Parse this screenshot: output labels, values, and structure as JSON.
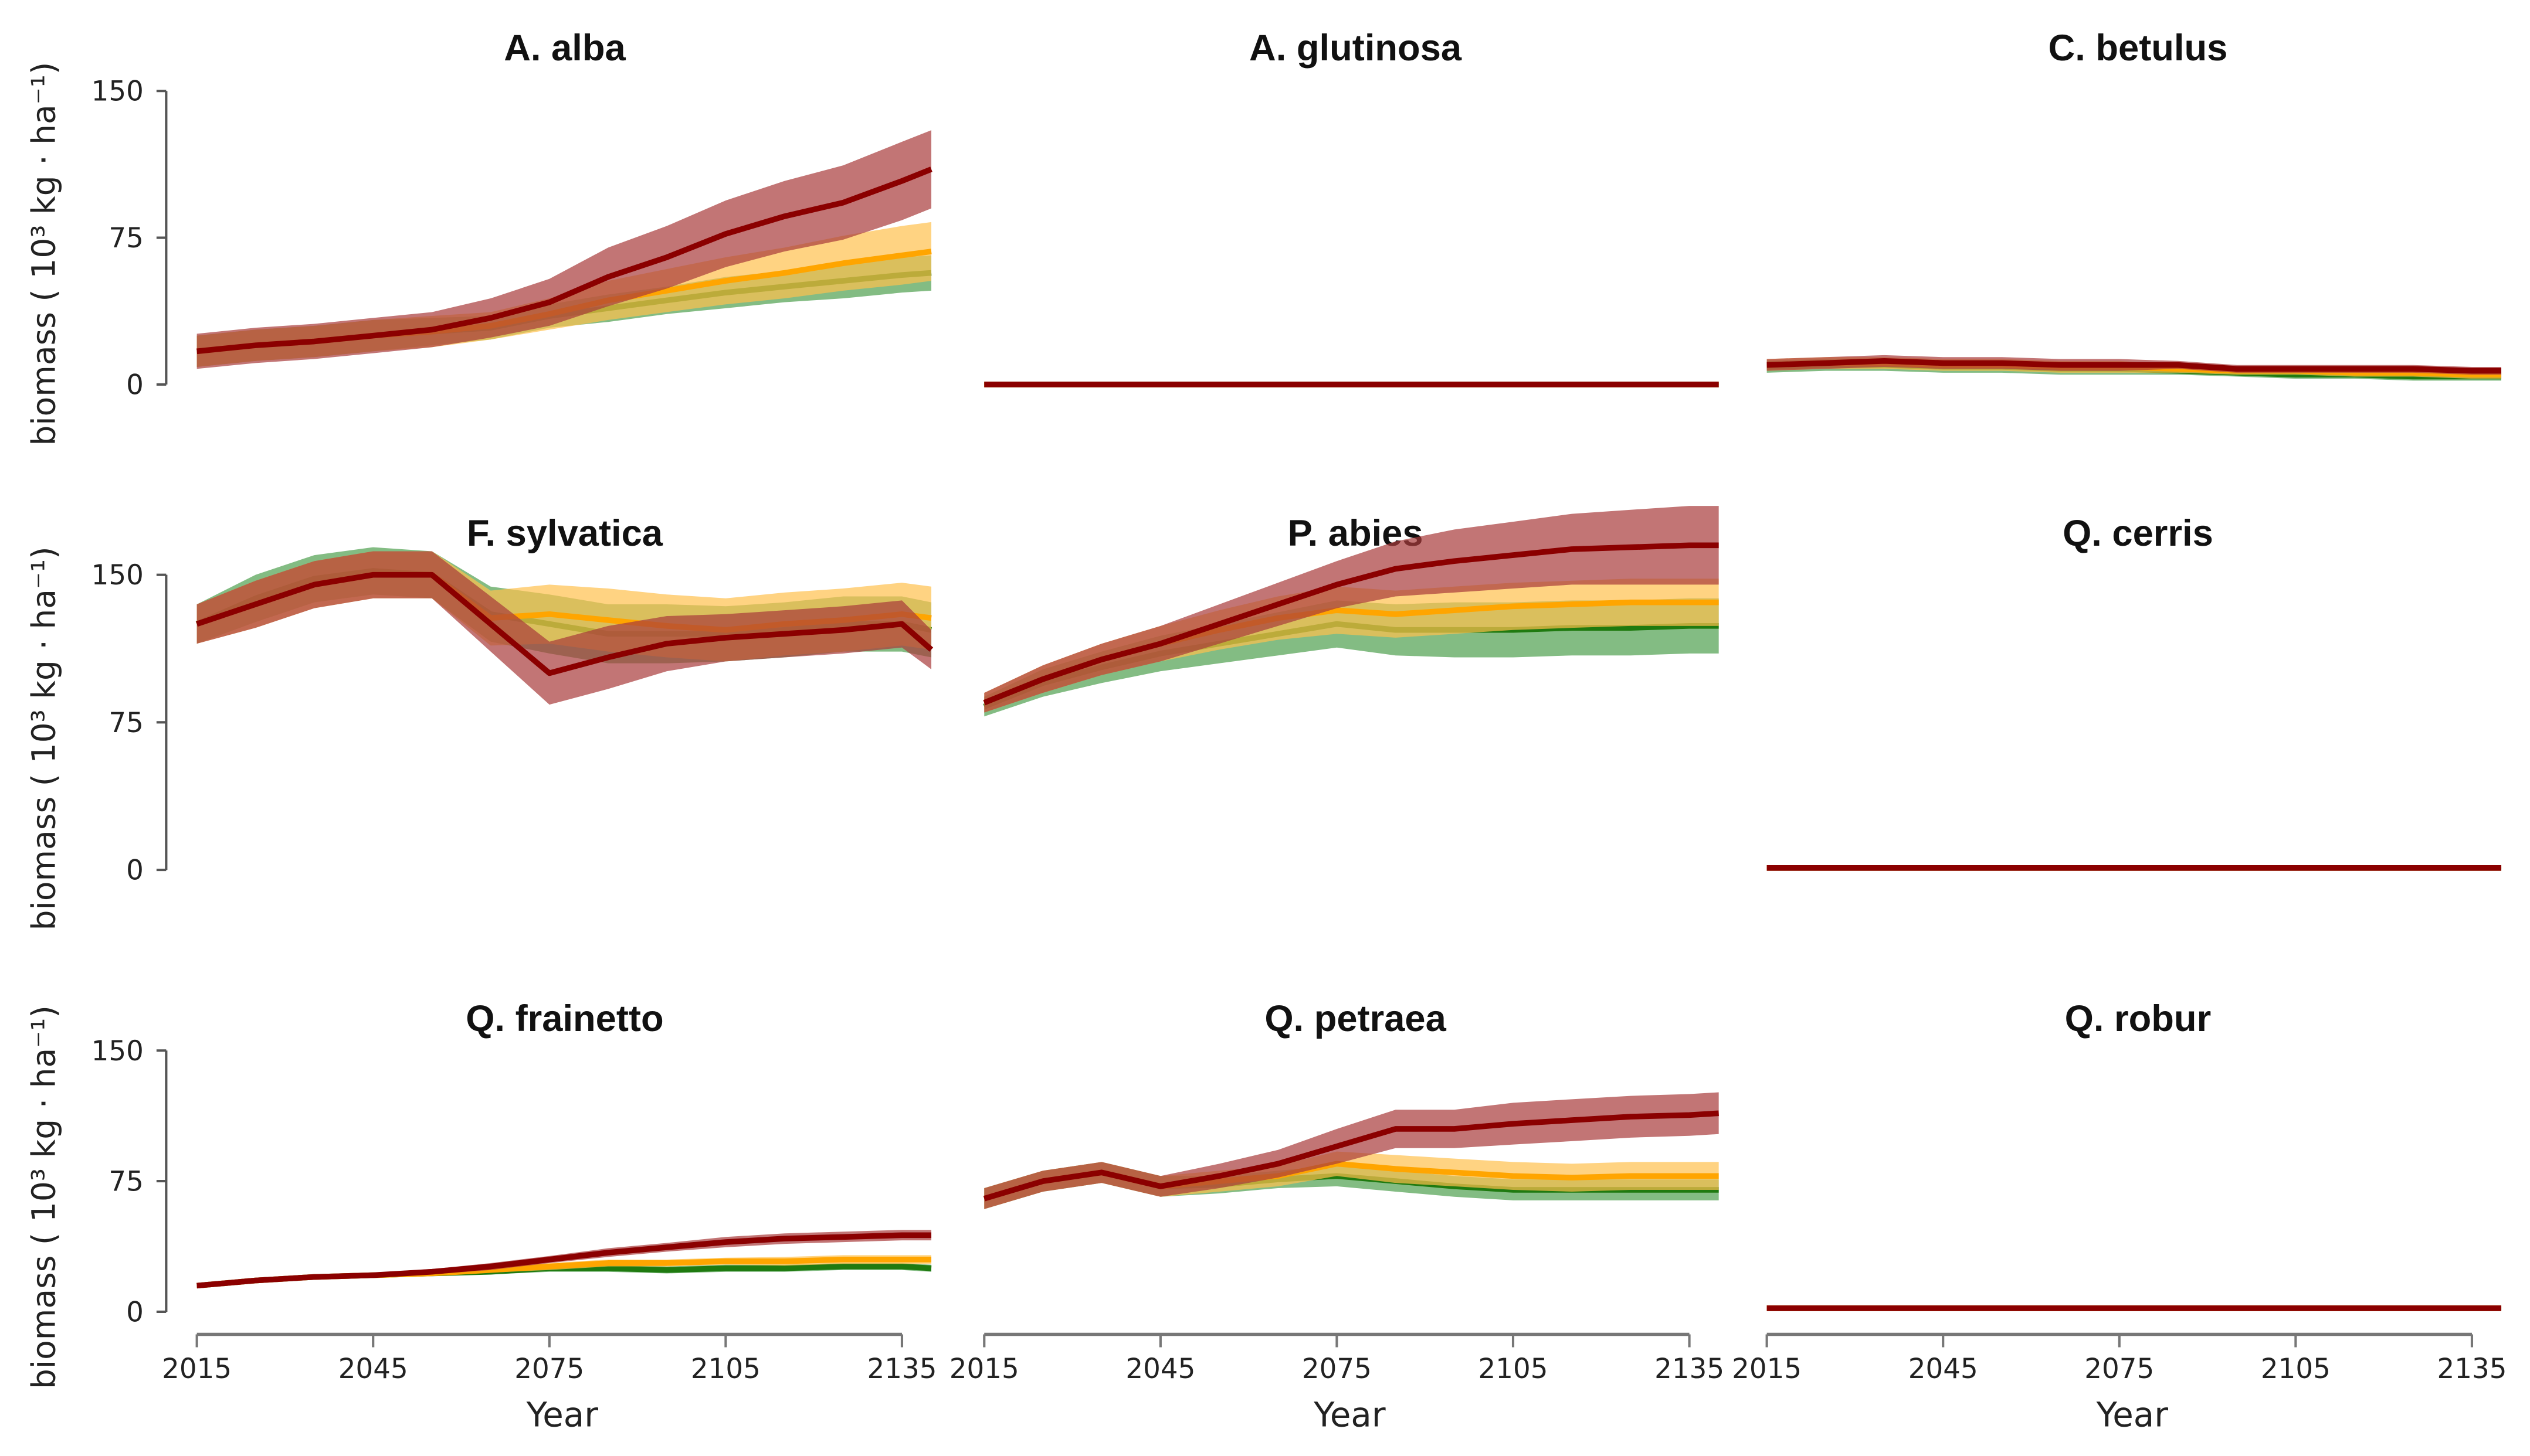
{
  "chart_data": {
    "type": "line",
    "xlabel": "Year",
    "ylabel": "biomass ( 10³ kg · ha⁻¹)",
    "xticks": [
      "2015",
      "2045",
      "2075",
      "2105",
      "2135"
    ],
    "yticks": [
      "0",
      "75",
      "150"
    ],
    "ylim": [
      0,
      150
    ],
    "xlim": [
      2015,
      2140
    ],
    "x": [
      2015,
      2025,
      2035,
      2045,
      2055,
      2065,
      2075,
      2085,
      2095,
      2105,
      2115,
      2125,
      2135,
      2140
    ],
    "colors": {
      "green": {
        "line": "#1f7a10",
        "band": "#4f9f4f"
      },
      "orange": {
        "line": "#ffa500",
        "band": "#ffc04d"
      },
      "red": {
        "line": "#8b0000",
        "band": "#a83a3a"
      }
    },
    "panels": [
      {
        "title": "A. alba",
        "series": [
          {
            "color": "green",
            "mean": [
              17,
              20,
              22,
              25,
              27,
              29,
              35,
              39,
              43,
              47,
              50,
              53,
              56,
              57
            ],
            "ci": [
              8,
              8,
              8,
              8,
              7,
              6,
              6,
              7,
              7,
              8,
              8,
              9,
              9,
              9
            ]
          },
          {
            "color": "orange",
            "mean": [
              17,
              20,
              22,
              25,
              27,
              30,
              36,
              43,
              48,
              53,
              57,
              62,
              66,
              68
            ],
            "ci": [
              8,
              8,
              8,
              8,
              8,
              7,
              8,
              10,
              11,
              12,
              13,
              14,
              15,
              15
            ]
          },
          {
            "color": "red",
            "mean": [
              17,
              20,
              22,
              25,
              28,
              34,
              42,
              55,
              65,
              77,
              86,
              93,
              104,
              110
            ],
            "ci": [
              9,
              9,
              9,
              9,
              9,
              10,
              12,
              15,
              16,
              17,
              18,
              19,
              20,
              20
            ]
          }
        ]
      },
      {
        "title": "A. glutinosa",
        "series": [
          {
            "color": "green",
            "mean": [
              0,
              0,
              0,
              0,
              0,
              0,
              0,
              0,
              0,
              0,
              0,
              0,
              0,
              0
            ],
            "ci": [
              0.5,
              0.5,
              0.5,
              0.5,
              0.5,
              0.5,
              0.5,
              0.5,
              0.5,
              0.5,
              0.5,
              0.5,
              0.5,
              0.5
            ]
          },
          {
            "color": "orange",
            "mean": [
              0,
              0,
              0,
              0,
              0,
              0,
              0,
              0,
              0,
              0,
              0,
              0,
              0,
              0
            ],
            "ci": [
              0.5,
              0.5,
              0.5,
              0.5,
              0.5,
              0.5,
              0.5,
              0.5,
              0.5,
              0.5,
              0.5,
              0.5,
              0.5,
              0.5
            ]
          },
          {
            "color": "red",
            "mean": [
              0,
              0,
              0,
              0,
              0,
              0,
              0,
              0,
              0,
              0,
              0,
              0,
              0,
              0
            ],
            "ci": [
              0.5,
              0.5,
              0.5,
              0.5,
              0.5,
              0.5,
              0.5,
              0.5,
              0.5,
              0.5,
              0.5,
              0.5,
              0.5,
              0.5
            ]
          }
        ]
      },
      {
        "title": "C. betulus",
        "series": [
          {
            "color": "green",
            "mean": [
              9,
              10,
              10,
              9,
              9,
              8,
              8,
              7,
              6,
              5,
              5,
              4,
              4,
              4
            ],
            "ci": [
              3,
              3,
              3,
              3,
              3,
              3,
              3,
              2,
              2,
              2,
              2,
              2,
              2,
              2
            ]
          },
          {
            "color": "orange",
            "mean": [
              10,
              11,
              11,
              10,
              10,
              9,
              9,
              8,
              7,
              7,
              6,
              6,
              5,
              5
            ],
            "ci": [
              3,
              3,
              3,
              3,
              3,
              3,
              3,
              2,
              2,
              2,
              2,
              2,
              2,
              2
            ]
          },
          {
            "color": "red",
            "mean": [
              10,
              11,
              12,
              11,
              11,
              10,
              10,
              10,
              8,
              8,
              8,
              8,
              7,
              7
            ],
            "ci": [
              3,
              3,
              3,
              3,
              3,
              3,
              3,
              2,
              2,
              2,
              2,
              2,
              2,
              2
            ]
          }
        ]
      },
      {
        "title": "F. sylvatica",
        "series": [
          {
            "color": "green",
            "mean": [
              125,
              138,
              148,
              152,
              150,
              130,
              125,
              120,
              120,
              120,
              122,
              125,
              125,
              122
            ],
            "ci": [
              10,
              12,
              12,
              12,
              12,
              14,
              15,
              15,
              15,
              14,
              14,
              14,
              14,
              14
            ]
          },
          {
            "color": "orange",
            "mean": [
              125,
              135,
              145,
              150,
              150,
              128,
              130,
              127,
              124,
              122,
              125,
              127,
              130,
              128
            ],
            "ci": [
              10,
              12,
              12,
              12,
              12,
              14,
              15,
              16,
              16,
              16,
              16,
              16,
              16,
              16
            ]
          },
          {
            "color": "red",
            "mean": [
              125,
              135,
              145,
              150,
              150,
              125,
              100,
              108,
              115,
              118,
              120,
              122,
              125,
              112
            ],
            "ci": [
              10,
              12,
              12,
              12,
              12,
              14,
              16,
              16,
              14,
              12,
              12,
              12,
              12,
              10
            ]
          }
        ]
      },
      {
        "title": "P. abies",
        "series": [
          {
            "color": "green",
            "mean": [
              83,
              95,
              103,
              110,
              115,
              120,
              125,
              122,
              122,
              122,
              123,
              123,
              124,
              124
            ],
            "ci": [
              5,
              7,
              8,
              9,
              10,
              11,
              12,
              13,
              14,
              14,
              14,
              14,
              14,
              14
            ]
          },
          {
            "color": "orange",
            "mean": [
              85,
              97,
              107,
              115,
              122,
              128,
              132,
              130,
              132,
              134,
              135,
              136,
              136,
              136
            ],
            "ci": [
              5,
              7,
              8,
              9,
              10,
              11,
              12,
              12,
              12,
              12,
              12,
              12,
              12,
              12
            ]
          },
          {
            "color": "red",
            "mean": [
              85,
              97,
              107,
              115,
              125,
              135,
              145,
              153,
              157,
              160,
              163,
              164,
              165,
              165
            ],
            "ci": [
              5,
              7,
              8,
              9,
              10,
              11,
              12,
              14,
              16,
              17,
              18,
              19,
              20,
              20
            ]
          }
        ]
      },
      {
        "title": "Q. cerris",
        "series": [
          {
            "color": "green",
            "mean": [
              1,
              1,
              1,
              1,
              1,
              1,
              1,
              1,
              1,
              1,
              1,
              1,
              1,
              1
            ],
            "ci": [
              0.5,
              0.5,
              0.5,
              0.5,
              0.5,
              0.5,
              0.5,
              0.5,
              0.5,
              0.5,
              0.5,
              0.5,
              0.5,
              0.5
            ]
          },
          {
            "color": "orange",
            "mean": [
              1,
              1,
              1,
              1,
              1,
              1,
              1,
              1,
              1,
              1,
              1,
              1,
              1,
              1
            ],
            "ci": [
              0.5,
              0.5,
              0.5,
              0.5,
              0.5,
              0.5,
              0.5,
              0.5,
              0.5,
              0.5,
              0.5,
              0.5,
              0.5,
              0.5
            ]
          },
          {
            "color": "red",
            "mean": [
              1,
              1,
              1,
              1,
              1,
              1,
              1,
              1,
              1,
              1,
              1,
              1,
              1,
              1
            ],
            "ci": [
              0.5,
              0.5,
              0.5,
              0.5,
              0.5,
              0.5,
              0.5,
              0.5,
              0.5,
              0.5,
              0.5,
              0.5,
              0.5,
              0.5
            ]
          }
        ]
      },
      {
        "title": "Q. frainetto",
        "series": [
          {
            "color": "green",
            "mean": [
              15,
              18,
              20,
              21,
              22,
              23,
              25,
              25,
              24,
              25,
              25,
              26,
              26,
              25
            ],
            "ci": [
              1.5,
              1.5,
              1.5,
              1.5,
              1.5,
              1.5,
              2,
              2,
              2,
              2,
              2,
              2,
              2,
              2
            ]
          },
          {
            "color": "orange",
            "mean": [
              15,
              18,
              20,
              21,
              22,
              24,
              26,
              28,
              28,
              29,
              29,
              30,
              30,
              30
            ],
            "ci": [
              1.5,
              1.5,
              1.5,
              1.5,
              1.5,
              1.5,
              2,
              2,
              2,
              2,
              2.5,
              2.5,
              2.5,
              2.5
            ]
          },
          {
            "color": "red",
            "mean": [
              15,
              18,
              20,
              21,
              23,
              26,
              30,
              34,
              37,
              40,
              42,
              43,
              44,
              44
            ],
            "ci": [
              1.5,
              1.5,
              1.5,
              1.5,
              1.5,
              2,
              2,
              2.5,
              2.5,
              3,
              3,
              3,
              3,
              3
            ]
          }
        ]
      },
      {
        "title": "Q. petraea",
        "series": [
          {
            "color": "green",
            "mean": [
              65,
              75,
              80,
              72,
              73,
              76,
              78,
              75,
              72,
              70,
              70,
              70,
              70,
              70
            ],
            "ci": [
              6,
              6,
              6,
              6,
              5,
              5,
              6,
              6,
              6,
              6,
              6,
              6,
              6,
              6
            ]
          },
          {
            "color": "orange",
            "mean": [
              65,
              75,
              80,
              72,
              75,
              78,
              85,
              82,
              80,
              78,
              77,
              78,
              78,
              78
            ],
            "ci": [
              6,
              6,
              6,
              6,
              6,
              6,
              7,
              8,
              8,
              8,
              8,
              8,
              8,
              8
            ]
          },
          {
            "color": "red",
            "mean": [
              65,
              75,
              80,
              72,
              78,
              85,
              95,
              105,
              105,
              108,
              110,
              112,
              113,
              114
            ],
            "ci": [
              6,
              6,
              6,
              6,
              7,
              8,
              10,
              11,
              11,
              12,
              12,
              12,
              12,
              12
            ]
          }
        ]
      },
      {
        "title": "Q. robur",
        "series": [
          {
            "color": "green",
            "mean": [
              2,
              2,
              2,
              2,
              2,
              2,
              2,
              2,
              2,
              2,
              2,
              2,
              2,
              2
            ],
            "ci": [
              1,
              1,
              1,
              1,
              1,
              1,
              1,
              1,
              1,
              1,
              1,
              1,
              1,
              1
            ]
          },
          {
            "color": "orange",
            "mean": [
              2,
              2,
              2,
              2,
              2,
              2,
              2,
              2,
              2,
              2,
              2,
              2,
              2,
              2
            ],
            "ci": [
              1,
              1,
              1,
              1,
              1,
              1,
              1,
              1,
              1,
              1,
              1,
              1,
              1,
              1
            ]
          },
          {
            "color": "red",
            "mean": [
              2,
              2,
              2,
              2,
              2,
              2,
              2,
              2,
              2,
              2,
              2,
              2,
              2,
              2
            ],
            "ci": [
              1,
              1,
              1,
              1,
              1,
              1,
              1,
              1,
              1,
              1,
              1,
              1,
              1,
              1
            ]
          }
        ]
      }
    ]
  }
}
